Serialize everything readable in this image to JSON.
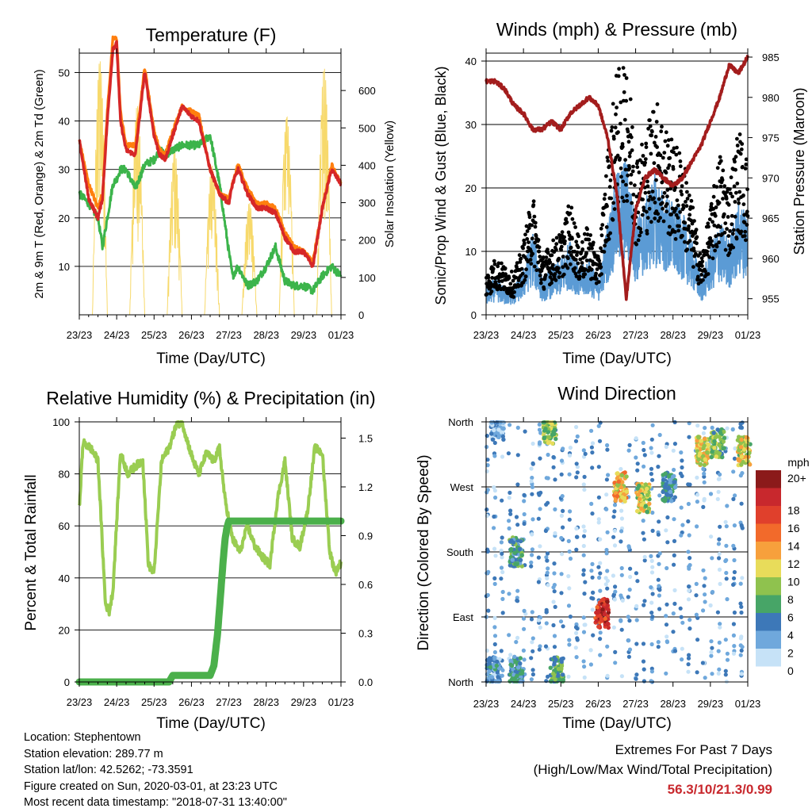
{
  "chart_data": [
    {
      "type": "line",
      "title": "Temperature (F)",
      "xlabel": "Time (Day/UTC)",
      "ylabel": "2m & 9m T (Red, Orange) & 2m Td (Green)",
      "ylabel_right": "Solar Insolation (Yellow)",
      "x_ticks": [
        "23/23",
        "24/23",
        "25/23",
        "26/23",
        "27/23",
        "28/23",
        "29/23",
        "01/23"
      ],
      "ylim": [
        0,
        54
      ],
      "y_ticks": [
        10,
        20,
        30,
        40,
        50
      ],
      "ylim_right": [
        0,
        700
      ],
      "y_ticks_right": [
        0,
        100,
        200,
        300,
        400,
        500,
        600
      ],
      "x_days": [
        0,
        0.25,
        0.5,
        0.62,
        0.75,
        0.9,
        1,
        1.1,
        1.25,
        1.5,
        1.75,
        2,
        2.15,
        2.3,
        2.5,
        2.75,
        3,
        3.2,
        3.5,
        3.75,
        4,
        4.1,
        4.25,
        4.5,
        4.75,
        5,
        5.25,
        5.5,
        5.75,
        6,
        6.25,
        6.5,
        6.75,
        7
      ],
      "series": [
        {
          "name": "2m T",
          "color": "#d62728",
          "values": [
            36,
            24,
            20,
            24,
            40,
            55,
            56,
            40,
            34,
            33,
            50,
            37,
            33,
            32,
            37,
            43,
            41,
            40,
            30,
            25,
            23,
            27,
            30,
            25,
            22,
            22,
            21,
            16,
            13,
            13,
            10,
            22,
            30,
            27
          ]
        },
        {
          "name": "9m T",
          "color": "#ff7f0e",
          "values": [
            36,
            27,
            22,
            25,
            42,
            57,
            57,
            42,
            35,
            35,
            51,
            38,
            34,
            33,
            38,
            43,
            42,
            41,
            30,
            25,
            24,
            27,
            31,
            26,
            23,
            23,
            22,
            17,
            14,
            13,
            11,
            22,
            31,
            27
          ]
        },
        {
          "name": "2m Td",
          "color": "#3cb44b",
          "values": [
            25,
            23,
            20,
            14,
            20,
            27,
            28,
            30,
            30,
            26,
            31,
            32,
            34,
            33,
            34,
            35,
            35,
            35,
            37,
            27,
            13,
            8,
            10,
            6,
            7,
            10,
            14,
            7,
            6,
            6,
            5,
            8,
            10,
            8
          ]
        }
      ],
      "insolation": {
        "name": "Solar Insolation",
        "color": "#f7d96b",
        "days": [
          0,
          1,
          2,
          3,
          4,
          5,
          6
        ],
        "peaks": [
          680,
          560,
          440,
          400,
          300,
          530,
          660
        ]
      }
    },
    {
      "type": "scatter",
      "title": "Winds (mph) & Pressure (mb)",
      "xlabel": "Time (Day/UTC)",
      "ylabel": "Sonic/Prop Wind & Gust (Blue, Black)",
      "ylabel_right": "Station Pressure (Maroon)",
      "x_ticks": [
        "23/23",
        "24/23",
        "25/23",
        "26/23",
        "27/23",
        "28/23",
        "29/23",
        "01/23"
      ],
      "ylim": [
        0,
        40
      ],
      "y_ticks": [
        0,
        10,
        20,
        30,
        40
      ],
      "ylim_right": [
        953,
        985
      ],
      "y_ticks_right": [
        955,
        960,
        965,
        970,
        975,
        980,
        985
      ],
      "x_days": [
        0,
        0.25,
        0.5,
        0.75,
        1,
        1.25,
        1.5,
        1.75,
        2,
        2.25,
        2.5,
        2.75,
        3,
        3.25,
        3.5,
        3.75,
        4,
        4.25,
        4.5,
        4.75,
        5,
        5.25,
        5.5,
        5.75,
        6,
        6.25,
        6.5,
        6.75,
        7
      ],
      "series": [
        {
          "name": "Wind",
          "color": "#5b9bd5",
          "values": [
            3,
            4,
            3,
            3,
            5,
            9,
            4,
            5,
            6,
            8,
            5,
            6,
            4,
            10,
            15,
            17,
            10,
            12,
            15,
            13,
            12,
            11,
            8,
            4,
            7,
            10,
            8,
            12,
            11
          ]
        },
        {
          "name": "Gust",
          "color": "#000000",
          "values": [
            5,
            7,
            6,
            5,
            9,
            15,
            7,
            9,
            10,
            14,
            9,
            11,
            7,
            20,
            30,
            33,
            20,
            22,
            27,
            24,
            21,
            20,
            14,
            7,
            13,
            20,
            16,
            23,
            19
          ]
        },
        {
          "name": "Pressure",
          "color": "#a31d1d",
          "values": [
            982,
            982,
            981,
            979,
            978,
            976,
            976,
            977,
            976,
            978,
            979,
            980,
            979,
            975,
            968,
            955,
            966,
            970,
            971,
            970,
            969,
            970,
            972,
            974,
            977,
            980,
            984,
            983,
            985
          ]
        }
      ]
    },
    {
      "type": "line",
      "title": "Relative Humidity (%) & Precipitation (in)",
      "xlabel": "Time (Day/UTC)",
      "ylabel": "Percent & Total Rainfall",
      "x_ticks": [
        "23/23",
        "24/23",
        "25/23",
        "26/23",
        "27/23",
        "28/23",
        "29/23",
        "01/23"
      ],
      "ylim": [
        0,
        100
      ],
      "y_ticks": [
        0,
        20,
        40,
        60,
        80,
        100
      ],
      "ylim_right": [
        0,
        1.6
      ],
      "y_ticks_right": [
        "0.0",
        "0.3",
        "0.6",
        "0.9",
        "1.2",
        "1.5"
      ],
      "series": [
        {
          "name": "RH",
          "color": "#9acd52",
          "x_days": [
            0,
            0.1,
            0.3,
            0.5,
            0.7,
            0.8,
            0.9,
            1.1,
            1.3,
            1.5,
            1.7,
            1.85,
            2,
            2.2,
            2.4,
            2.6,
            2.75,
            2.9,
            3.05,
            3.2,
            3.4,
            3.6,
            3.75,
            3.9,
            4.1,
            4.3,
            4.5,
            4.7,
            4.9,
            5.1,
            5.3,
            5.5,
            5.7,
            5.9,
            6.1,
            6.3,
            6.5,
            6.7,
            6.85,
            7
          ],
          "values": [
            67,
            92,
            90,
            85,
            30,
            27,
            35,
            88,
            80,
            83,
            85,
            45,
            42,
            85,
            90,
            99,
            100,
            92,
            85,
            80,
            88,
            85,
            90,
            70,
            55,
            50,
            60,
            52,
            48,
            45,
            70,
            85,
            55,
            52,
            65,
            90,
            88,
            50,
            42,
            46
          ]
        },
        {
          "name": "Precipitation",
          "color": "#4bb04b",
          "x_days": [
            0,
            2.4,
            2.5,
            3.5,
            3.6,
            3.7,
            3.75,
            3.8,
            3.85,
            3.9,
            3.95,
            4.0,
            4.1,
            7
          ],
          "values": [
            0,
            0,
            0.04,
            0.04,
            0.1,
            0.3,
            0.45,
            0.6,
            0.75,
            0.88,
            0.95,
            0.99,
            0.99,
            0.99
          ]
        }
      ]
    },
    {
      "type": "scatter",
      "title": "Wind Direction",
      "xlabel": "Time (Day/UTC)",
      "ylabel": "Direction (Colored By Speed)",
      "x_ticks": [
        "23/23",
        "24/23",
        "25/23",
        "26/23",
        "27/23",
        "28/23",
        "29/23",
        "01/23"
      ],
      "y_tick_labels": [
        "North",
        "East",
        "South",
        "West",
        "North"
      ],
      "ylim": [
        0,
        360
      ],
      "colorbar": {
        "title": "mph",
        "labels": [
          "20+",
          "18",
          "16",
          "14",
          "12",
          "10",
          "8",
          "6",
          "4",
          "2",
          "0"
        ],
        "colors": [
          "#8b1a1a",
          "#c8282d",
          "#e0402c",
          "#f26a2b",
          "#f7a03c",
          "#e8dc5a",
          "#8fc24e",
          "#47a567",
          "#3d78b8",
          "#6fa8dc",
          "#c6e2f7"
        ]
      },
      "clusters": [
        {
          "x": 0.2,
          "y": 15,
          "speed": 3
        },
        {
          "x": 0.3,
          "y": 355,
          "speed": 2
        },
        {
          "x": 0.8,
          "y": 180,
          "speed": 5
        },
        {
          "x": 0.8,
          "y": 15,
          "speed": 4
        },
        {
          "x": 1.7,
          "y": 350,
          "speed": 8
        },
        {
          "x": 1.9,
          "y": 15,
          "speed": 6
        },
        {
          "x": 3.1,
          "y": 95,
          "speed": 17
        },
        {
          "x": 3.6,
          "y": 270,
          "speed": 11
        },
        {
          "x": 4.2,
          "y": 255,
          "speed": 9
        },
        {
          "x": 4.9,
          "y": 270,
          "speed": 4
        },
        {
          "x": 5.8,
          "y": 320,
          "speed": 10
        },
        {
          "x": 6.2,
          "y": 330,
          "speed": 7
        },
        {
          "x": 6.9,
          "y": 320,
          "speed": 9
        }
      ]
    }
  ],
  "info": {
    "location": "Location: Stephentown",
    "elevation": "Station elevation: 289.77 m",
    "latlon": "Station lat/lon: 42.5262; -73.3591",
    "created": "Figure created on Sun, 2020-03-01, at 23:23 UTC",
    "recent": "Most recent data timestamp: \"2018-07-31 13:40:00\""
  },
  "extremes": {
    "title": "Extremes For Past 7 Days",
    "subtitle": "(High/Low/Max Wind/Total Precipitation)",
    "values": "56.3/10/21.3/0.99"
  }
}
